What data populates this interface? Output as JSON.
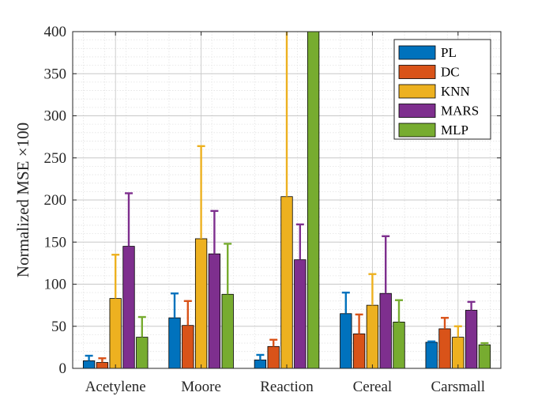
{
  "chart_data": {
    "type": "bar",
    "categories": [
      "Acetylene",
      "Moore",
      "Reaction",
      "Cereal",
      "Carsmall"
    ],
    "ylabel": "Normalized MSE ×100",
    "xlabel": "",
    "ylim": [
      0,
      400
    ],
    "yticks": [
      0,
      50,
      100,
      150,
      200,
      250,
      300,
      350,
      400
    ],
    "grid": true,
    "minor_grid": true,
    "legend_position": "top-right",
    "series": [
      {
        "name": "PL",
        "color": "#0072BD",
        "values": [
          9,
          60,
          10,
          65,
          31
        ],
        "error_upper": [
          15,
          89,
          16,
          90,
          32
        ]
      },
      {
        "name": "DC",
        "color": "#D95319",
        "values": [
          7,
          51,
          26,
          41,
          47
        ],
        "error_upper": [
          12,
          80,
          34,
          64,
          60
        ]
      },
      {
        "name": "KNN",
        "color": "#EDB120",
        "values": [
          83,
          154,
          204,
          75,
          37
        ],
        "error_upper": [
          135,
          264,
          400,
          112,
          50
        ]
      },
      {
        "name": "MARS",
        "color": "#7E2F8E",
        "values": [
          145,
          136,
          129,
          89,
          69
        ],
        "error_upper": [
          208,
          187,
          171,
          157,
          79
        ]
      },
      {
        "name": "MLP",
        "color": "#77AC30",
        "values": [
          37,
          88,
          400,
          55,
          28
        ],
        "error_upper": [
          61,
          148,
          400,
          81,
          30
        ]
      }
    ]
  }
}
